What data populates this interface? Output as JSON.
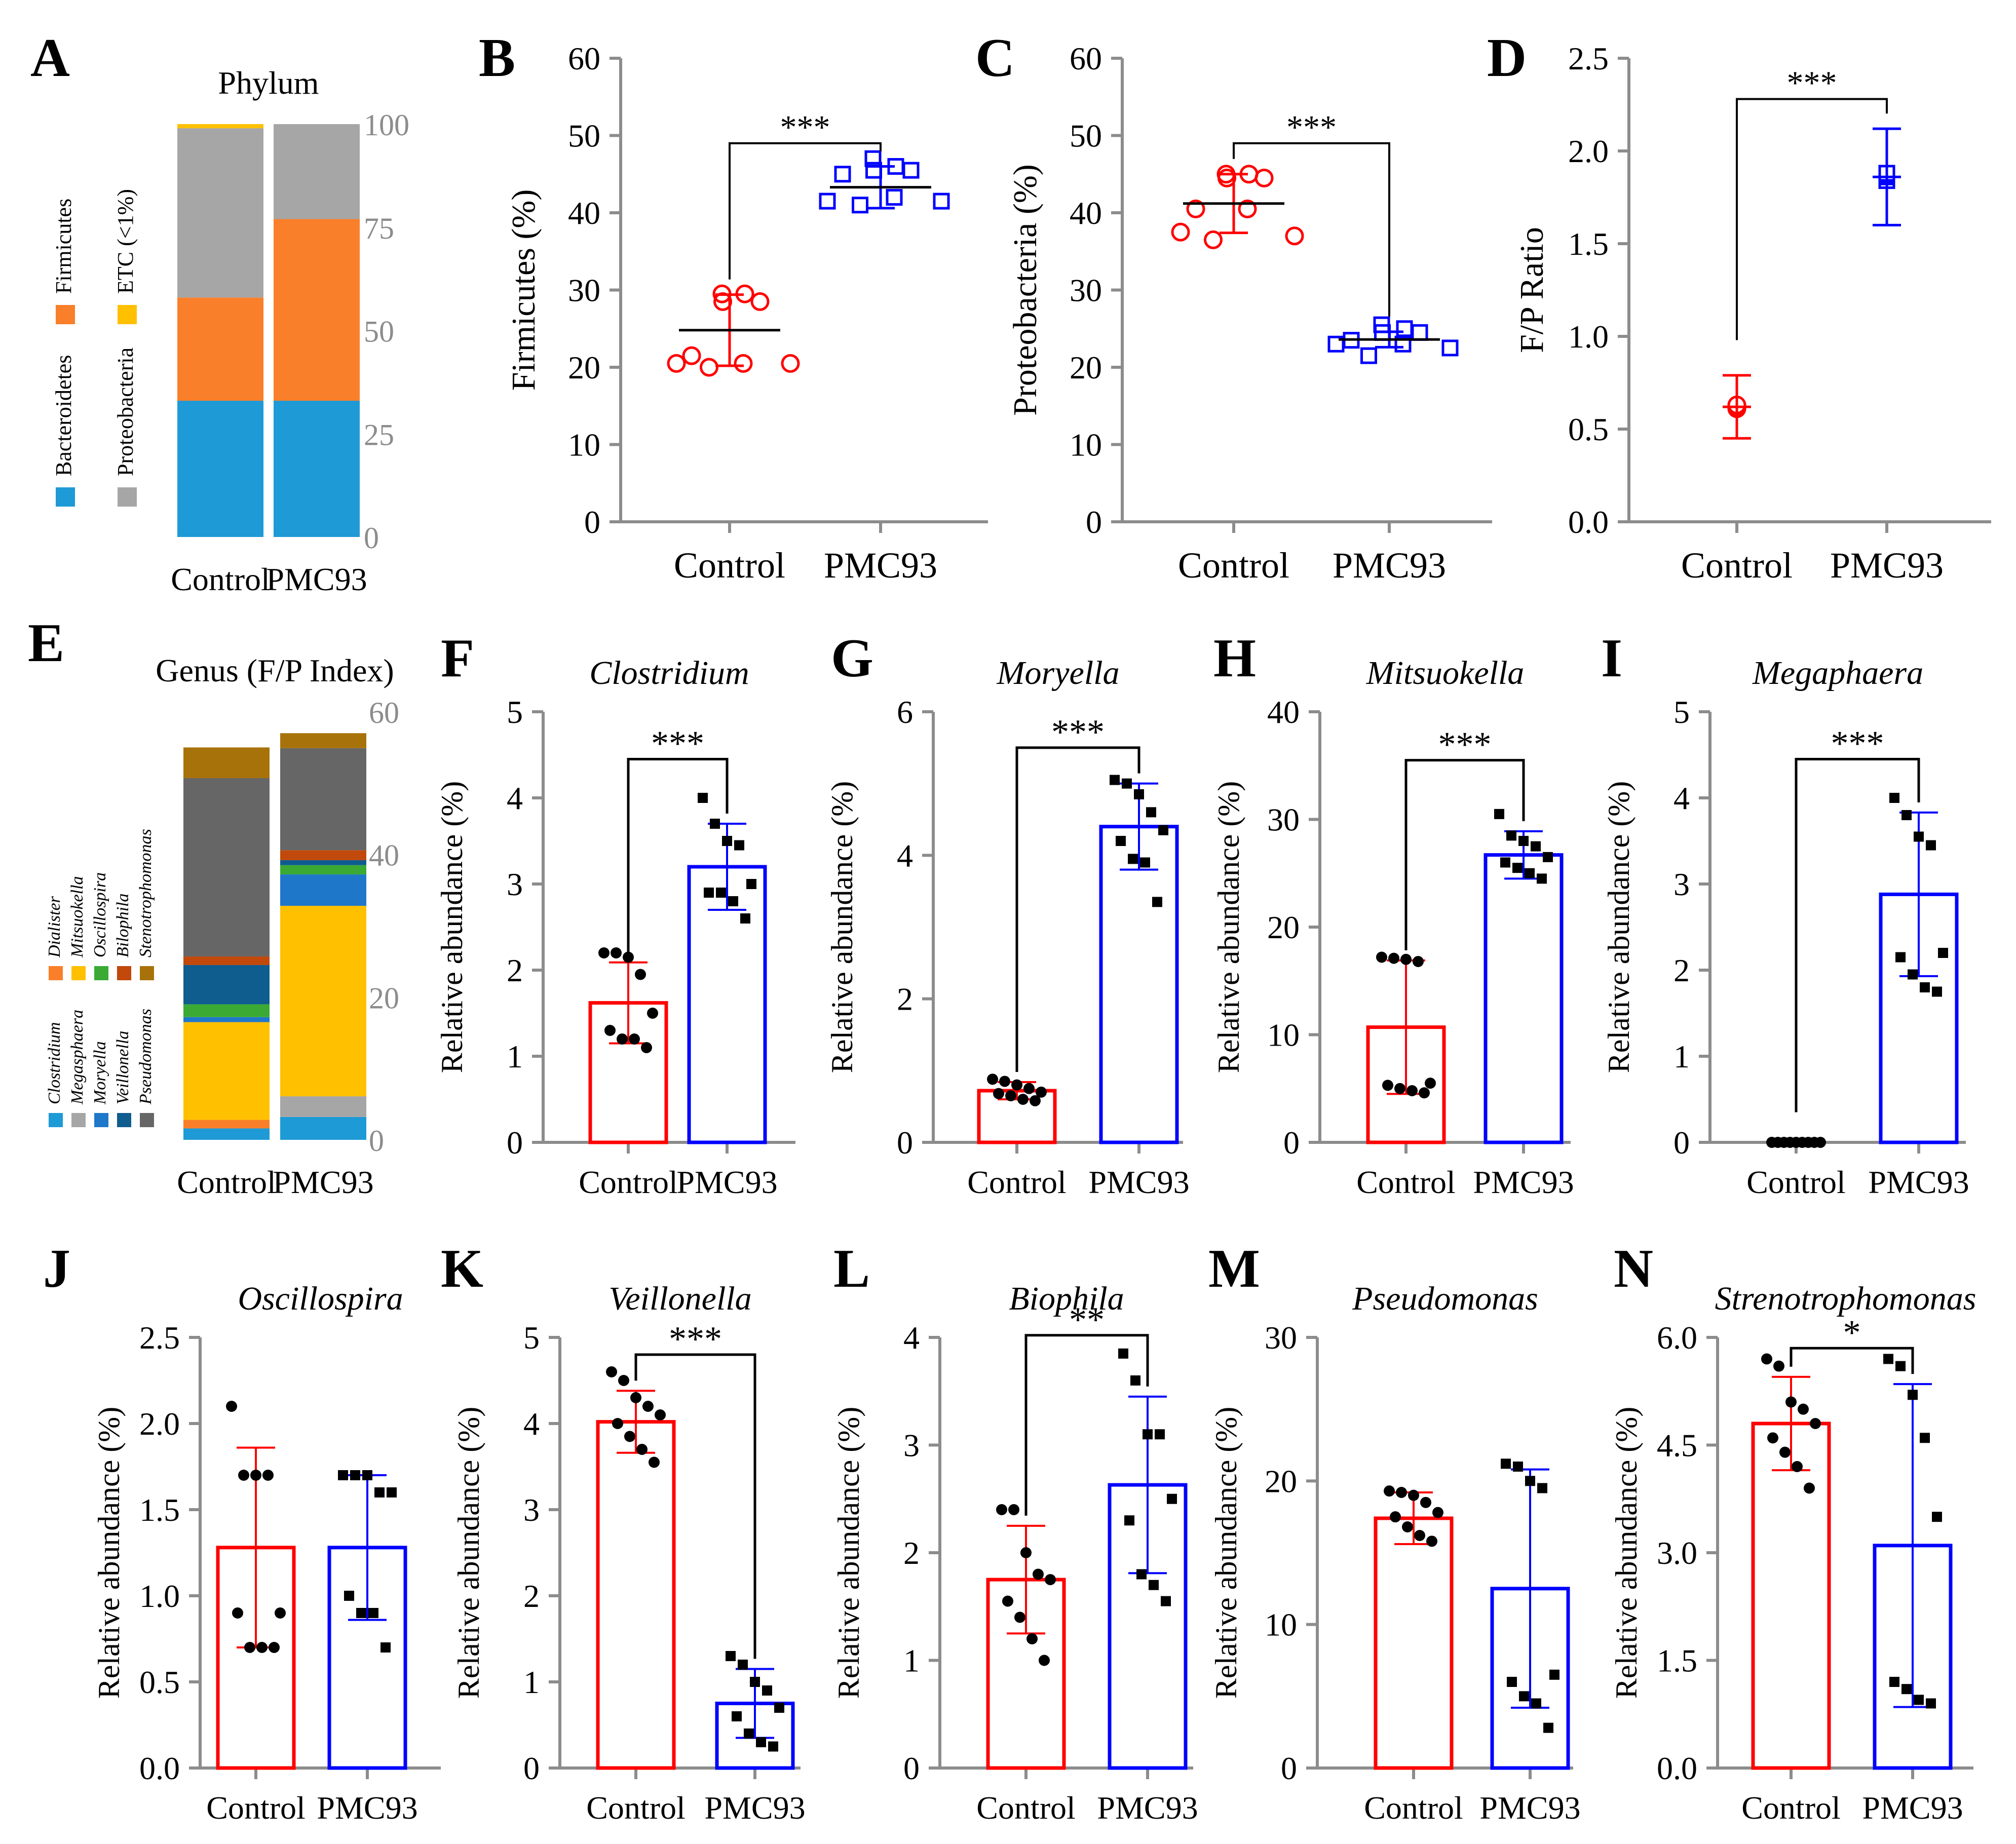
{
  "colors": {
    "control": "#ff0000",
    "pmc93": "#0000ff",
    "axis": "#888888",
    "bacteroidetes": "#1e9ad6",
    "firmicutes": "#f97f2a",
    "proteobacteria": "#a6a6a6",
    "etc": "#ffc000",
    "clostridium": "#1e9ad6",
    "megasphaera": "#a6a6a6",
    "moryella": "#1f77c9",
    "veillonella": "#0f5c8f",
    "pseudomonas": "#666666",
    "dialister": "#f97f2a",
    "mitsuokella": "#ffc000",
    "oscillospira": "#3aaa35",
    "bilophila": "#c0490b",
    "stenotrophomonas": "#a8720a"
  },
  "chart_data": [
    {
      "panel": "A",
      "type": "bar",
      "stacked": true,
      "title": "Phylum",
      "categories": [
        "Control",
        "PMC93"
      ],
      "ylim": [
        0,
        100
      ],
      "yticks": [
        "0",
        "25",
        "50",
        "75",
        "100"
      ],
      "series": [
        {
          "name": "Bacteroidetes",
          "color_key": "bacteroidetes",
          "values": [
            33,
            33
          ]
        },
        {
          "name": "Firmicutes",
          "color_key": "firmicutes",
          "values": [
            25,
            44
          ]
        },
        {
          "name": "Proteobacteria",
          "color_key": "proteobacteria",
          "values": [
            41,
            23
          ]
        },
        {
          "name": "ETC (<1%)",
          "color_key": "etc",
          "values": [
            1,
            0
          ]
        }
      ],
      "legend": [
        {
          "name": "Bacteroidetes",
          "color_key": "bacteroidetes"
        },
        {
          "name": "Proteobacteria",
          "color_key": "proteobacteria"
        },
        {
          "name": "Firmicutes",
          "color_key": "firmicutes"
        },
        {
          "name": "ETC (<1%)",
          "color_key": "etc"
        }
      ]
    },
    {
      "panel": "B",
      "type": "scatter",
      "ylabel": "Firmicutes (%)",
      "ylim": [
        0,
        60
      ],
      "yticks": [
        "0",
        "10",
        "20",
        "30",
        "40",
        "50",
        "60"
      ],
      "categories": [
        "Control",
        "PMC93"
      ],
      "mean": [
        24.8,
        43.3
      ],
      "sd": [
        4.6,
        2.7
      ],
      "points": [
        [
          29.5,
          29.5,
          28.5,
          28.5,
          21.5,
          20.5,
          20.5,
          20.5,
          20
        ],
        [
          47,
          46,
          45.5,
          45.5,
          45,
          42,
          41.5,
          41.5,
          41
        ]
      ],
      "marker": [
        "circle",
        "square"
      ],
      "sig": "***",
      "sig_y": 49
    },
    {
      "panel": "C",
      "type": "scatter",
      "ylabel": "Proteobacteria (%)",
      "ylim": [
        0,
        60
      ],
      "yticks": [
        "0",
        "10",
        "20",
        "30",
        "40",
        "50",
        "60"
      ],
      "categories": [
        "Control",
        "PMC93"
      ],
      "mean": [
        41.2,
        23.6
      ],
      "sd": [
        3.8,
        1.0
      ],
      "points": [
        [
          45,
          45,
          44.5,
          44.5,
          40.5,
          40.5,
          37.5,
          37,
          36.5
        ],
        [
          25.5,
          25,
          24.5,
          24.5,
          23.5,
          23,
          23,
          22.5,
          21.5
        ]
      ],
      "marker": [
        "circle",
        "square"
      ],
      "sig": "***",
      "sig_y": 49
    },
    {
      "panel": "D",
      "type": "scatter",
      "ylabel": "F/P Ratio",
      "ylim": [
        0,
        2.5
      ],
      "yticks": [
        "0.0",
        "0.5",
        "1.0",
        "1.5",
        "2.0",
        "2.5"
      ],
      "categories": [
        "Control",
        "PMC93"
      ],
      "mean": [
        0.62,
        1.86
      ],
      "sd": [
        0.17,
        0.26
      ],
      "points": [
        [
          0.61,
          0.62,
          0.62,
          0.63
        ],
        [
          1.84,
          1.86,
          1.87,
          1.88
        ]
      ],
      "marker": [
        "circle",
        "square"
      ],
      "sig": "***",
      "sig_y": 2.28,
      "sig_left_y": 0.98
    },
    {
      "panel": "E",
      "type": "bar",
      "stacked": true,
      "title": "Genus (F/P Index)",
      "categories": [
        "Control",
        "PMC93"
      ],
      "ylim": [
        0,
        60
      ],
      "yticks": [
        "0",
        "20",
        "40",
        "60"
      ],
      "series": [
        {
          "name": "Clostridium",
          "color_key": "clostridium",
          "values": [
            1.6,
            3.2
          ]
        },
        {
          "name": "Dialister",
          "color_key": "dialister",
          "values": [
            1.2,
            0
          ]
        },
        {
          "name": "Megasphaera",
          "color_key": "megasphaera",
          "values": [
            0,
            2.9
          ]
        },
        {
          "name": "Mitsuokella",
          "color_key": "mitsuokella",
          "values": [
            13.7,
            26.7
          ]
        },
        {
          "name": "Moryella",
          "color_key": "moryella",
          "values": [
            0.7,
            4.4
          ]
        },
        {
          "name": "Oscillospira",
          "color_key": "oscillospira",
          "values": [
            1.8,
            1.3
          ]
        },
        {
          "name": "Veillonella",
          "color_key": "veillonella",
          "values": [
            5.5,
            0.7
          ]
        },
        {
          "name": "Bilophila",
          "color_key": "bilophila",
          "values": [
            1.2,
            1.4
          ]
        },
        {
          "name": "Pseudomonas",
          "color_key": "pseudomonas",
          "values": [
            25,
            14.3
          ]
        },
        {
          "name": "Stenotrophomonas",
          "color_key": "stenotrophomonas",
          "values": [
            4.3,
            2.1
          ]
        }
      ],
      "legend": [
        {
          "name": "Clostridium",
          "color_key": "clostridium"
        },
        {
          "name": "Megasphaera",
          "color_key": "megasphaera"
        },
        {
          "name": "Moryella",
          "color_key": "moryella"
        },
        {
          "name": "Veillonella",
          "color_key": "veillonella"
        },
        {
          "name": "Pseudomonas",
          "color_key": "pseudomonas"
        },
        {
          "name": "Dialister",
          "color_key": "dialister"
        },
        {
          "name": "Mitsuokella",
          "color_key": "mitsuokella"
        },
        {
          "name": "Oscillospira",
          "color_key": "oscillospira"
        },
        {
          "name": "Bilophila",
          "color_key": "bilophila"
        },
        {
          "name": "Stenotrophomonas",
          "color_key": "stenotrophomonas"
        }
      ]
    },
    {
      "panel": "F",
      "type": "bar",
      "title": "Clostridium",
      "ylabel": "Relative abundance (%)",
      "ylim": [
        0,
        5
      ],
      "yticks": [
        "0",
        "1",
        "2",
        "3",
        "4",
        "5"
      ],
      "categories": [
        "Control",
        "PMC93"
      ],
      "values": [
        1.62,
        3.2
      ],
      "sd": [
        0.47,
        0.5
      ],
      "points": [
        [
          2.2,
          2.2,
          2.15,
          1.95,
          1.5,
          1.3,
          1.2,
          1.2,
          1.1
        ],
        [
          4.0,
          3.7,
          3.5,
          3.45,
          3.0,
          2.9,
          2.9,
          2.8,
          2.6
        ]
      ],
      "sig": "***",
      "sig_y": 4.45
    },
    {
      "panel": "G",
      "type": "bar",
      "title": "Moryella",
      "ylabel": "Relative abundance (%)",
      "ylim": [
        0,
        6
      ],
      "yticks": [
        "0",
        "2",
        "4",
        "6"
      ],
      "categories": [
        "Control",
        "PMC93"
      ],
      "values": [
        0.72,
        4.4
      ],
      "sd": [
        0.12,
        0.6
      ],
      "points": [
        [
          0.88,
          0.85,
          0.8,
          0.75,
          0.7,
          0.68,
          0.65,
          0.6,
          0.58
        ],
        [
          5.05,
          5.0,
          4.85,
          4.6,
          4.35,
          4.2,
          3.95,
          3.9,
          3.35
        ]
      ],
      "sig": "***",
      "sig_y": 5.5
    },
    {
      "panel": "H",
      "type": "bar",
      "title": "Mitsuokella",
      "ylabel": "Relative abundance (%)",
      "ylim": [
        0,
        40
      ],
      "yticks": [
        "0",
        "10",
        "20",
        "30",
        "40"
      ],
      "categories": [
        "Control",
        "PMC93"
      ],
      "values": [
        10.7,
        26.7
      ],
      "sd": [
        6.2,
        2.2
      ],
      "points": [
        [
          17.2,
          17.1,
          17.0,
          16.8,
          5.5,
          5.3,
          5.0,
          4.8,
          4.6
        ],
        [
          30.5,
          28.5,
          28.0,
          27.5,
          26.5,
          26.0,
          25.5,
          25.0,
          24.5
        ]
      ],
      "sig": "***",
      "sig_y": 35.5
    },
    {
      "panel": "I",
      "type": "bar",
      "title": "Megaphaera",
      "ylabel": "Relative abundance (%)",
      "ylim": [
        0,
        5
      ],
      "yticks": [
        "0",
        "1",
        "2",
        "3",
        "4",
        "5"
      ],
      "categories": [
        "Control",
        "PMC93"
      ],
      "values": [
        0,
        2.88
      ],
      "sd": [
        0,
        0.95
      ],
      "points": [
        [
          0,
          0,
          0,
          0,
          0,
          0,
          0,
          0,
          0
        ],
        [
          4.0,
          3.8,
          3.55,
          3.45,
          2.2,
          2.15,
          1.95,
          1.8,
          1.75
        ]
      ],
      "sig": "***",
      "sig_y": 4.45,
      "sig_left_y": 0.35
    },
    {
      "panel": "J",
      "type": "bar",
      "title": "Oscillospira",
      "ylabel": "Relative abundance (%)",
      "ylim": [
        0,
        2.5
      ],
      "yticks": [
        "0.0",
        "0.5",
        "1.0",
        "1.5",
        "2.0",
        "2.5"
      ],
      "categories": [
        "Control",
        "PMC93"
      ],
      "values": [
        1.28,
        1.28
      ],
      "sd": [
        0.58,
        0.42
      ],
      "points": [
        [
          2.1,
          1.7,
          1.7,
          1.7,
          0.9,
          0.9,
          0.7,
          0.7,
          0.7
        ],
        [
          1.7,
          1.7,
          1.7,
          1.6,
          1.6,
          1.0,
          0.9,
          0.9,
          0.7
        ]
      ],
      "sig": ""
    },
    {
      "panel": "K",
      "type": "bar",
      "title": "Veillonella",
      "ylabel": "Relative abundance (%)",
      "ylim": [
        0,
        5
      ],
      "yticks": [
        "0",
        "1",
        "2",
        "3",
        "4",
        "5"
      ],
      "categories": [
        "Control",
        "PMC93"
      ],
      "values": [
        4.02,
        0.75
      ],
      "sd": [
        0.36,
        0.4
      ],
      "points": [
        [
          4.6,
          4.5,
          4.3,
          4.2,
          4.1,
          4.0,
          3.85,
          3.7,
          3.55
        ],
        [
          1.3,
          1.2,
          1.0,
          0.9,
          0.7,
          0.6,
          0.4,
          0.3,
          0.25
        ]
      ],
      "sig": "***",
      "sig_y": 4.8
    },
    {
      "panel": "L",
      "type": "bar",
      "title": "Biophila",
      "ylabel": "Relative abundance (%)",
      "ylim": [
        0,
        4
      ],
      "yticks": [
        "0",
        "1",
        "2",
        "3",
        "4"
      ],
      "categories": [
        "Control",
        "PMC93"
      ],
      "values": [
        1.75,
        2.63
      ],
      "sd": [
        0.5,
        0.82
      ],
      "points": [
        [
          2.4,
          2.4,
          2.0,
          1.8,
          1.75,
          1.55,
          1.4,
          1.2,
          1.0
        ],
        [
          3.85,
          3.6,
          3.1,
          3.1,
          2.5,
          2.3,
          1.8,
          1.7,
          1.55
        ]
      ],
      "sig": "**",
      "sig_y": 4.02
    },
    {
      "panel": "M",
      "type": "bar",
      "title": "Pseudomonas",
      "ylabel": "Relative abundance (%)",
      "ylim": [
        0,
        30
      ],
      "yticks": [
        "0",
        "10",
        "20",
        "30"
      ],
      "categories": [
        "Control",
        "PMC93"
      ],
      "values": [
        17.4,
        12.5
      ],
      "sd": [
        1.8,
        8.3
      ],
      "points": [
        [
          19.3,
          19.2,
          19.0,
          18.5,
          17.8,
          17.5,
          16.8,
          16.2,
          15.8
        ],
        [
          21.2,
          21.0,
          20.0,
          19.5,
          6.5,
          6.0,
          5.0,
          4.5,
          2.8
        ]
      ],
      "sig": ""
    },
    {
      "panel": "N",
      "type": "bar",
      "title": "Strenotrophomonas",
      "ylabel": "Relative abundance (%)",
      "ylim": [
        0,
        6.0
      ],
      "yticks": [
        "0.0",
        "1.5",
        "3.0",
        "4.5",
        "6.0"
      ],
      "categories": [
        "Control",
        "PMC93"
      ],
      "values": [
        4.8,
        3.1
      ],
      "sd": [
        0.65,
        2.25
      ],
      "points": [
        [
          5.7,
          5.6,
          5.1,
          5.0,
          4.8,
          4.6,
          4.4,
          4.2,
          3.9
        ],
        [
          5.7,
          5.6,
          5.2,
          4.6,
          3.5,
          1.2,
          1.1,
          0.95,
          0.9
        ]
      ],
      "sig": "*",
      "sig_y": 5.85
    }
  ]
}
